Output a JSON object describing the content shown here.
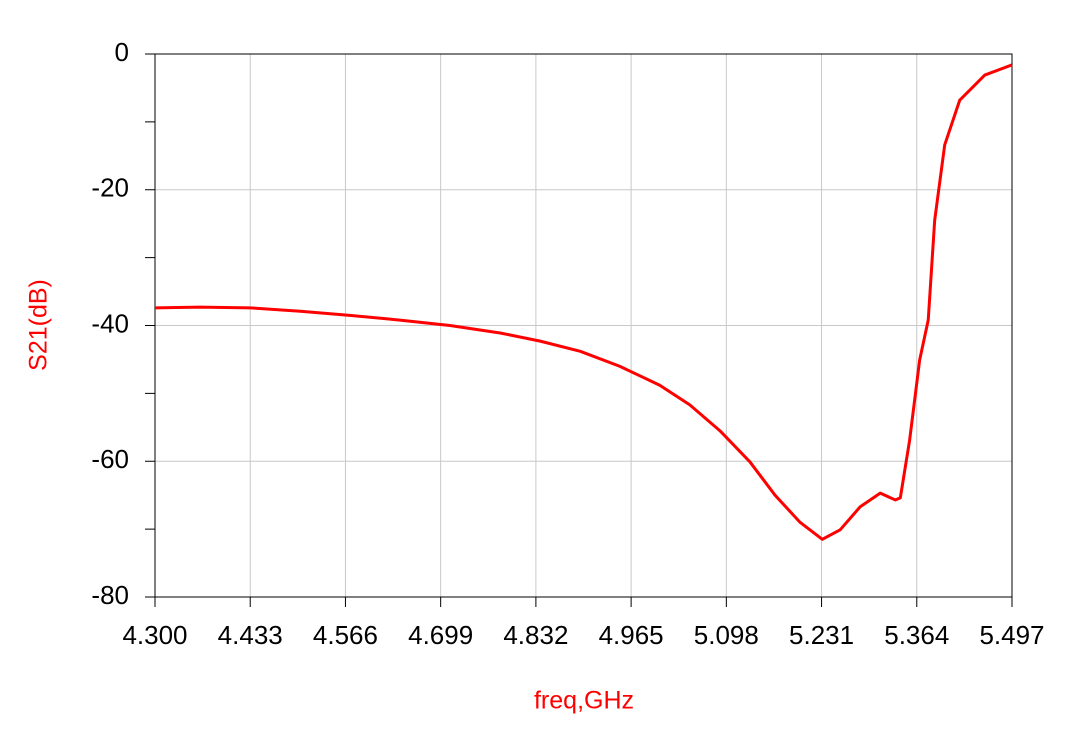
{
  "chart_data": {
    "type": "line",
    "x_label": "freq,GHz",
    "y_label": "S21(dB)",
    "xlim": [
      4.3,
      5.497
    ],
    "xticks": [
      {
        "value": 4.3,
        "label": "4.300"
      },
      4.433,
      4.566,
      4.699,
      4.832,
      4.965,
      5.098,
      5.231,
      5.364,
      5.497
    ],
    "ylim": [
      -80,
      0
    ],
    "yticks": [
      -80,
      -60,
      -40,
      -20,
      0
    ],
    "yminorticks": [
      -70,
      -50,
      -30,
      -10
    ],
    "grid": true,
    "series": [
      {
        "color": "#ff0000",
        "x": [
          4.3,
          4.363,
          4.433,
          4.503,
          4.572,
          4.642,
          4.712,
          4.782,
          4.838,
          4.894,
          4.949,
          5.005,
          5.047,
          5.089,
          5.131,
          5.166,
          5.201,
          5.232,
          5.257,
          5.285,
          5.313,
          5.334,
          5.341,
          5.354,
          5.368,
          5.38,
          5.389,
          5.403,
          5.424,
          5.459,
          5.497
        ],
        "values": [
          -37.4,
          -37.3,
          -37.4,
          -37.9,
          -38.5,
          -39.2,
          -40.0,
          -41.1,
          -42.3,
          -43.8,
          -46.0,
          -48.8,
          -51.7,
          -55.5,
          -60.1,
          -65.0,
          -69.0,
          -71.5,
          -70.1,
          -66.7,
          -64.7,
          -65.7,
          -65.4,
          -56.9,
          -45.1,
          -39.2,
          -24.5,
          -13.4,
          -6.8,
          -3.1,
          -1.6
        ]
      }
    ]
  }
}
